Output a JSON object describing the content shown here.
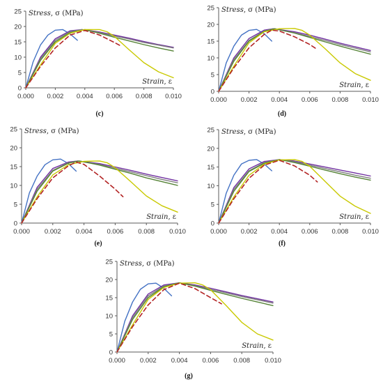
{
  "colors": {
    "blue": "#4472C4",
    "purple": "#7030A0",
    "grey": "#7F7F7F",
    "green": "#548235",
    "yellow": "#C9C900",
    "red_dashed": "#B22222",
    "axis": "#595959"
  },
  "chart_data": [
    {
      "type": "line",
      "caption": "(c)",
      "ylabel_word": "Stress",
      "ylabel_sym": ", σ (MPa)",
      "xlabel_word": "Strain",
      "xlabel_sym": ", ε",
      "xlim": [
        0,
        0.01
      ],
      "ylim": [
        0,
        25
      ],
      "xticks": [
        "0.000",
        "0.002",
        "0.004",
        "0.006",
        "0.008",
        "0.010"
      ],
      "yticks": [
        "0",
        "5",
        "10",
        "15",
        "20",
        "25"
      ],
      "series": [
        {
          "color": "blue",
          "dash": false,
          "x": [
            0,
            0.0005,
            0.001,
            0.0015,
            0.002,
            0.0025,
            0.003,
            0.0035
          ],
          "y": [
            0,
            8.5,
            14,
            17.2,
            18.8,
            19,
            17.6,
            15.5
          ]
        },
        {
          "color": "purple",
          "dash": false,
          "x": [
            0,
            0.001,
            0.002,
            0.003,
            0.0038,
            0.005,
            0.006,
            0.007,
            0.008,
            0.009,
            0.01
          ],
          "y": [
            0,
            10,
            16,
            18.6,
            19,
            18.2,
            17.2,
            16.2,
            15.1,
            14.1,
            13.2
          ]
        },
        {
          "color": "grey",
          "dash": false,
          "x": [
            0,
            0.001,
            0.002,
            0.003,
            0.0038,
            0.005,
            0.006,
            0.007,
            0.008,
            0.009,
            0.01
          ],
          "y": [
            0,
            9.5,
            15.5,
            18.3,
            19,
            18,
            16.9,
            15.9,
            14.8,
            13.9,
            13
          ]
        },
        {
          "color": "green",
          "dash": false,
          "x": [
            0,
            0.001,
            0.002,
            0.003,
            0.004,
            0.005,
            0.006,
            0.007,
            0.008,
            0.009,
            0.01
          ],
          "y": [
            0,
            9,
            15,
            18,
            19,
            17.8,
            16.5,
            15.3,
            14.1,
            13,
            12
          ]
        },
        {
          "color": "yellow",
          "dash": false,
          "x": [
            0,
            0.001,
            0.002,
            0.003,
            0.004,
            0.005,
            0.0055,
            0.006,
            0.007,
            0.008,
            0.009,
            0.01
          ],
          "y": [
            0,
            7.5,
            14.5,
            17.8,
            19,
            19,
            18.3,
            16.8,
            12.4,
            8.2,
            5.2,
            3.3
          ]
        },
        {
          "color": "red_dashed",
          "dash": true,
          "x": [
            0,
            0.001,
            0.002,
            0.003,
            0.004,
            0.005,
            0.006,
            0.0065
          ],
          "y": [
            0,
            7,
            13,
            17.2,
            18.7,
            17.2,
            14.8,
            13.5
          ]
        }
      ]
    },
    {
      "type": "line",
      "caption": "(d)",
      "ylabel_word": "Stress",
      "ylabel_sym": ", σ (MPa)",
      "xlabel_word": "Strain",
      "xlabel_sym": ", ε",
      "xlim": [
        0,
        0.01
      ],
      "ylim": [
        0,
        25
      ],
      "xticks": [
        "0.000",
        "0.002",
        "0.004",
        "0.006",
        "0.008",
        "0.010"
      ],
      "yticks": [
        "0",
        "5",
        "10",
        "15",
        "20",
        "25"
      ],
      "series": [
        {
          "color": "blue",
          "dash": false,
          "x": [
            0,
            0.0005,
            0.001,
            0.0015,
            0.002,
            0.0025,
            0.003,
            0.0035
          ],
          "y": [
            0,
            8.5,
            13.5,
            16.8,
            18.2,
            18.5,
            17.2,
            15
          ]
        },
        {
          "color": "purple",
          "dash": false,
          "x": [
            0,
            0.001,
            0.002,
            0.003,
            0.0036,
            0.005,
            0.006,
            0.007,
            0.008,
            0.009,
            0.01
          ],
          "y": [
            0,
            10,
            15.8,
            18.3,
            18.7,
            17.8,
            16.8,
            15.6,
            14.4,
            13.3,
            12.2
          ]
        },
        {
          "color": "grey",
          "dash": false,
          "x": [
            0,
            0.001,
            0.002,
            0.003,
            0.0036,
            0.005,
            0.006,
            0.007,
            0.008,
            0.009,
            0.01
          ],
          "y": [
            0,
            9.5,
            15.2,
            18,
            18.7,
            17.5,
            16.4,
            15.2,
            14,
            12.9,
            11.8
          ]
        },
        {
          "color": "green",
          "dash": false,
          "x": [
            0,
            0.001,
            0.002,
            0.003,
            0.0037,
            0.005,
            0.006,
            0.007,
            0.008,
            0.009,
            0.01
          ],
          "y": [
            0,
            9,
            15,
            17.9,
            18.7,
            17.4,
            16.1,
            14.8,
            13.5,
            12.3,
            11.1
          ]
        },
        {
          "color": "yellow",
          "dash": false,
          "x": [
            0,
            0.001,
            0.002,
            0.003,
            0.004,
            0.005,
            0.0055,
            0.006,
            0.007,
            0.008,
            0.009,
            0.01
          ],
          "y": [
            0,
            7.5,
            14.5,
            17.8,
            18.7,
            18.8,
            18.2,
            16.8,
            12.8,
            8.5,
            5.3,
            3.3
          ]
        },
        {
          "color": "red_dashed",
          "dash": true,
          "x": [
            0,
            0.001,
            0.002,
            0.003,
            0.0035,
            0.004,
            0.005,
            0.006,
            0.0065
          ],
          "y": [
            0,
            7,
            13,
            17,
            18.3,
            18,
            16.3,
            14,
            12.5
          ]
        }
      ]
    },
    {
      "type": "line",
      "caption": "(e)",
      "ylabel_word": "Stress",
      "ylabel_sym": ", σ (MPa)",
      "xlabel_word": "Strain",
      "xlabel_sym": ", ε",
      "xlim": [
        0,
        0.01
      ],
      "ylim": [
        0,
        25
      ],
      "xticks": [
        "0.000",
        "0.002",
        "0.004",
        "0.006",
        "0.008",
        "0.010"
      ],
      "yticks": [
        "0",
        "5",
        "10",
        "15",
        "20",
        "25"
      ],
      "series": [
        {
          "color": "blue",
          "dash": false,
          "x": [
            0,
            0.0005,
            0.001,
            0.0015,
            0.002,
            0.0025,
            0.003,
            0.0035
          ],
          "y": [
            0,
            8,
            12.5,
            15.5,
            16.8,
            17,
            15.8,
            13.8
          ]
        },
        {
          "color": "purple",
          "dash": false,
          "x": [
            0,
            0.001,
            0.002,
            0.003,
            0.0036,
            0.005,
            0.006,
            0.007,
            0.008,
            0.009,
            0.01
          ],
          "y": [
            0,
            9.5,
            14.5,
            16.2,
            16.5,
            15.8,
            14.9,
            14,
            13,
            12.1,
            11.2
          ]
        },
        {
          "color": "grey",
          "dash": false,
          "x": [
            0,
            0.001,
            0.002,
            0.003,
            0.0036,
            0.005,
            0.006,
            0.007,
            0.008,
            0.009,
            0.01
          ],
          "y": [
            0,
            9,
            14,
            16,
            16.5,
            15.6,
            14.6,
            13.6,
            12.6,
            11.6,
            10.7
          ]
        },
        {
          "color": "green",
          "dash": false,
          "x": [
            0,
            0.001,
            0.002,
            0.003,
            0.0037,
            0.005,
            0.006,
            0.007,
            0.008,
            0.009,
            0.01
          ],
          "y": [
            0,
            8.5,
            13.8,
            15.9,
            16.5,
            15.4,
            14.3,
            13.2,
            12,
            11,
            10
          ]
        },
        {
          "color": "yellow",
          "dash": false,
          "x": [
            0,
            0.001,
            0.002,
            0.003,
            0.004,
            0.005,
            0.0055,
            0.006,
            0.007,
            0.008,
            0.009,
            0.01
          ],
          "y": [
            0,
            7,
            12.8,
            15.5,
            16.4,
            16.5,
            16,
            14.7,
            11,
            7.2,
            4.6,
            2.9
          ]
        },
        {
          "color": "red_dashed",
          "dash": true,
          "x": [
            0,
            0.001,
            0.002,
            0.003,
            0.0035,
            0.004,
            0.005,
            0.006,
            0.0065
          ],
          "y": [
            0,
            6.5,
            12,
            15.2,
            16.2,
            15.6,
            12.5,
            9,
            7
          ]
        }
      ]
    },
    {
      "type": "line",
      "caption": "(f)",
      "ylabel_word": "Stress",
      "ylabel_sym": ", σ (MPa)",
      "xlabel_word": "Strain",
      "xlabel_sym": ", ε",
      "xlim": [
        0,
        0.01
      ],
      "ylim": [
        0,
        25
      ],
      "xticks": [
        "0.000",
        "0.002",
        "0.004",
        "0.006",
        "0.008",
        "0.010"
      ],
      "yticks": [
        "0",
        "5",
        "10",
        "15",
        "20",
        "25"
      ],
      "series": [
        {
          "color": "blue",
          "dash": false,
          "x": [
            0,
            0.0005,
            0.001,
            0.0015,
            0.002,
            0.0025,
            0.003,
            0.0035
          ],
          "y": [
            0,
            8,
            12.8,
            15.8,
            16.8,
            17,
            15.8,
            14
          ]
        },
        {
          "color": "purple",
          "dash": false,
          "x": [
            0,
            0.001,
            0.002,
            0.003,
            0.004,
            0.005,
            0.006,
            0.007,
            0.008,
            0.009,
            0.01
          ],
          "y": [
            0,
            9.5,
            14.5,
            16.5,
            17,
            16.6,
            15.8,
            15,
            14.2,
            13.4,
            12.6
          ]
        },
        {
          "color": "grey",
          "dash": false,
          "x": [
            0,
            0.001,
            0.002,
            0.003,
            0.004,
            0.005,
            0.006,
            0.007,
            0.008,
            0.009,
            0.01
          ],
          "y": [
            0,
            9,
            14,
            16.2,
            17,
            16.4,
            15.5,
            14.6,
            13.7,
            12.8,
            12
          ]
        },
        {
          "color": "green",
          "dash": false,
          "x": [
            0,
            0.001,
            0.002,
            0.003,
            0.004,
            0.005,
            0.006,
            0.007,
            0.008,
            0.009,
            0.01
          ],
          "y": [
            0,
            8.5,
            13.8,
            16,
            17,
            16.2,
            15.2,
            14.2,
            13.2,
            12.3,
            11.5
          ]
        },
        {
          "color": "yellow",
          "dash": false,
          "x": [
            0,
            0.001,
            0.002,
            0.003,
            0.004,
            0.005,
            0.0055,
            0.006,
            0.007,
            0.008,
            0.009,
            0.01
          ],
          "y": [
            0,
            7,
            12.8,
            15.8,
            16.9,
            17,
            16.5,
            15.2,
            11.2,
            7.2,
            4.5,
            2.6
          ]
        },
        {
          "color": "red_dashed",
          "dash": true,
          "x": [
            0,
            0.001,
            0.002,
            0.003,
            0.004,
            0.005,
            0.006,
            0.0065
          ],
          "y": [
            0,
            6.5,
            12,
            15.5,
            16.8,
            15.3,
            12.8,
            11
          ]
        }
      ]
    },
    {
      "type": "line",
      "caption": "(g)",
      "ylabel_word": "Stress",
      "ylabel_sym": ", σ (MPa)",
      "xlabel_word": "Strain",
      "xlabel_sym": ", ε",
      "xlim": [
        0,
        0.01
      ],
      "ylim": [
        0,
        25
      ],
      "xticks": [
        "0.000",
        "0.002",
        "0.004",
        "0.006",
        "0.008",
        "0.010"
      ],
      "yticks": [
        "0",
        "5",
        "10",
        "15",
        "20",
        "25"
      ],
      "series": [
        {
          "color": "blue",
          "dash": false,
          "x": [
            0,
            0.0005,
            0.001,
            0.0015,
            0.002,
            0.0025,
            0.003,
            0.0035
          ],
          "y": [
            0,
            8.5,
            13.8,
            17.3,
            18.8,
            19,
            17.6,
            15.5
          ]
        },
        {
          "color": "purple",
          "dash": false,
          "x": [
            0,
            0.001,
            0.002,
            0.003,
            0.004,
            0.005,
            0.006,
            0.007,
            0.008,
            0.009,
            0.01
          ],
          "y": [
            0,
            10,
            16,
            18.5,
            19.1,
            18.5,
            17.6,
            16.6,
            15.6,
            14.7,
            13.8
          ]
        },
        {
          "color": "grey",
          "dash": false,
          "x": [
            0,
            0.001,
            0.002,
            0.003,
            0.004,
            0.005,
            0.006,
            0.007,
            0.008,
            0.009,
            0.01
          ],
          "y": [
            0,
            9.5,
            15.5,
            18.2,
            19.1,
            18.3,
            17.3,
            16.3,
            15.3,
            14.4,
            13.5
          ]
        },
        {
          "color": "green",
          "dash": false,
          "x": [
            0,
            0.001,
            0.002,
            0.003,
            0.004,
            0.005,
            0.006,
            0.007,
            0.008,
            0.009,
            0.01
          ],
          "y": [
            0,
            9,
            15,
            18,
            19.1,
            18.2,
            17,
            15.9,
            14.8,
            13.8,
            12.8
          ]
        },
        {
          "color": "yellow",
          "dash": false,
          "x": [
            0,
            0.001,
            0.002,
            0.003,
            0.004,
            0.005,
            0.0055,
            0.006,
            0.007,
            0.008,
            0.009,
            0.01
          ],
          "y": [
            0,
            7.5,
            14.5,
            17.8,
            19,
            19.1,
            18.5,
            17.2,
            12.8,
            8.2,
            5,
            3.3
          ]
        },
        {
          "color": "red_dashed",
          "dash": true,
          "x": [
            0,
            0.001,
            0.002,
            0.003,
            0.004,
            0.005,
            0.006,
            0.0067
          ],
          "y": [
            0,
            7,
            13,
            17.2,
            19,
            17.5,
            15,
            13.3
          ]
        }
      ]
    }
  ]
}
